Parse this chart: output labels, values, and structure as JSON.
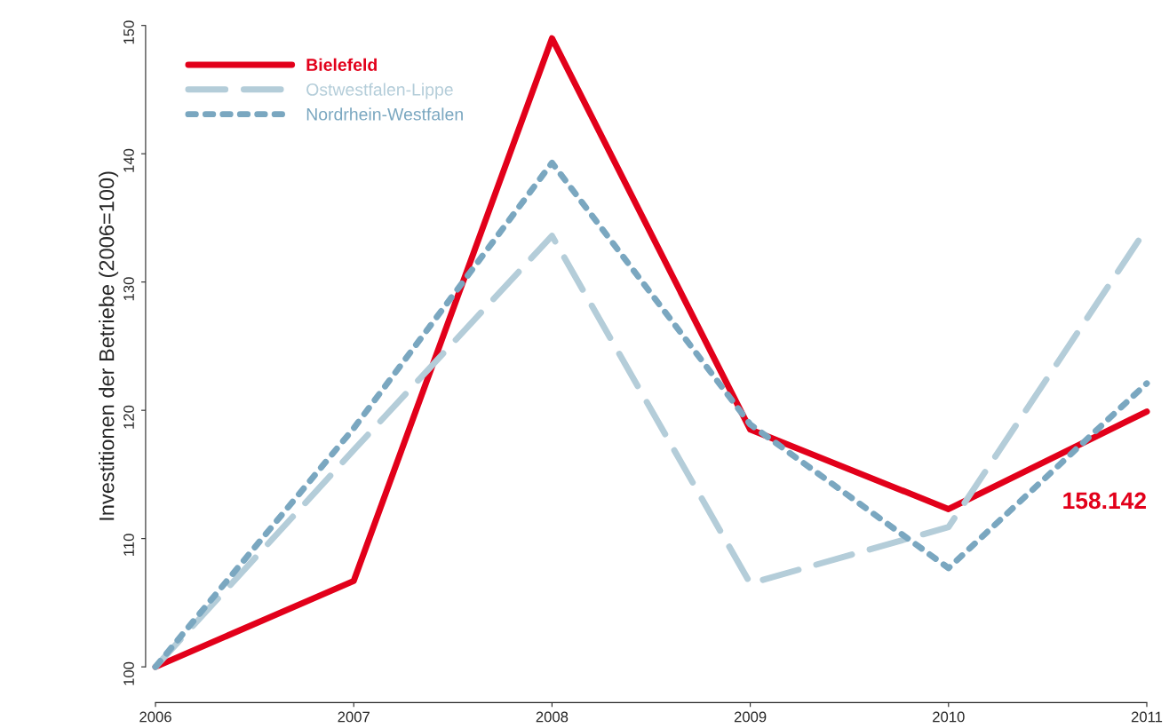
{
  "chart_data": {
    "type": "line",
    "ylabel": "Investitionen der Betriebe (2006=100)",
    "x": [
      2006,
      2007,
      2008,
      2009,
      2010,
      2011
    ],
    "xlim": [
      2006,
      2011
    ],
    "xticks": [
      2006,
      2007,
      2008,
      2009,
      2010,
      2011
    ],
    "ylim": [
      100,
      150
    ],
    "yticks": [
      100,
      110,
      120,
      130,
      140,
      150
    ],
    "grid": false,
    "legend": "top left",
    "marker": "none",
    "series": [
      {
        "name": "Bielefeld",
        "color": "#e2001a",
        "line_style": "solid",
        "values": [
          100,
          106.7,
          149.0,
          118.5,
          112.3,
          119.9
        ]
      },
      {
        "name": "Ostwestfalen-Lippe",
        "color": "#b4cdd9",
        "line_style": "dashed",
        "values": [
          100,
          116.9,
          133.6,
          106.5,
          110.9,
          134.2
        ]
      },
      {
        "name": "Nordrhein-Westfalen",
        "color": "#7aa7c0",
        "line_style": "dotted",
        "values": [
          100,
          118.6,
          139.3,
          118.9,
          107.7,
          122.1
        ]
      }
    ],
    "annotations": [
      "158.142"
    ]
  }
}
